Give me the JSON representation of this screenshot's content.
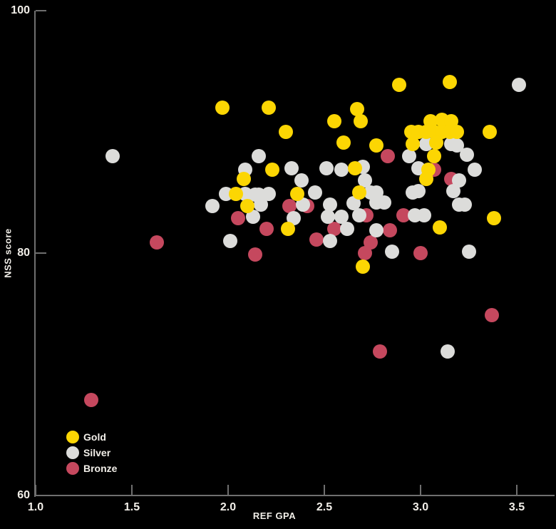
{
  "colors": {
    "background": "#000000",
    "axis": "#6f6f6f",
    "text": "#f2efe9",
    "gold": "#fcd603",
    "silver": "#dcdcda",
    "bronze": "#c5485e"
  },
  "chart_data": {
    "type": "scatter",
    "title": "",
    "xlabel": "REF GPA",
    "ylabel": "NSS score",
    "xlim": [
      1.0,
      3.5
    ],
    "ylim": [
      60,
      100
    ],
    "grid": false,
    "legend_position": "bottom-left",
    "x_ticks": [
      1.0,
      1.5,
      2.0,
      2.5,
      3.0,
      3.5
    ],
    "x_tick_labels": [
      "1.0",
      "1.5",
      "2.0",
      "2.5",
      "3.0",
      "3.5"
    ],
    "y_ticks": [
      100,
      80,
      60
    ],
    "y_tick_labels": [
      "100",
      "80",
      "60"
    ],
    "series": [
      {
        "name": "Gold",
        "color": "#fcd603",
        "points": [
          [
            1.97,
            92.0
          ],
          [
            2.21,
            92.0
          ],
          [
            2.3,
            90.0
          ],
          [
            2.55,
            90.9
          ],
          [
            2.6,
            89.1
          ],
          [
            2.67,
            91.9
          ],
          [
            2.69,
            90.9
          ],
          [
            2.89,
            93.9
          ],
          [
            3.15,
            94.1
          ],
          [
            3.05,
            90.9
          ],
          [
            3.11,
            91.0
          ],
          [
            3.16,
            90.9
          ],
          [
            2.95,
            90.0
          ],
          [
            2.99,
            90.0
          ],
          [
            3.03,
            90.0
          ],
          [
            3.07,
            90.0
          ],
          [
            3.11,
            90.0
          ],
          [
            3.15,
            90.0
          ],
          [
            3.19,
            90.0
          ],
          [
            3.36,
            90.0
          ],
          [
            2.77,
            88.9
          ],
          [
            2.96,
            89.0
          ],
          [
            3.08,
            89.1
          ],
          [
            3.07,
            88.0
          ],
          [
            2.23,
            86.9
          ],
          [
            2.66,
            87.0
          ],
          [
            3.04,
            86.9
          ],
          [
            2.08,
            86.1
          ],
          [
            3.03,
            86.1
          ],
          [
            2.04,
            84.9
          ],
          [
            2.36,
            84.9
          ],
          [
            2.68,
            85.0
          ],
          [
            2.1,
            83.9
          ],
          [
            2.31,
            82.0
          ],
          [
            3.1,
            82.1
          ],
          [
            3.38,
            82.9
          ],
          [
            2.7,
            78.9
          ]
        ]
      },
      {
        "name": "Silver",
        "color": "#dcdcda",
        "points": [
          [
            1.4,
            88.0
          ],
          [
            2.16,
            88.0
          ],
          [
            2.94,
            88.0
          ],
          [
            3.24,
            88.1
          ],
          [
            2.09,
            86.9
          ],
          [
            2.33,
            87.0
          ],
          [
            2.51,
            87.0
          ],
          [
            2.59,
            86.9
          ],
          [
            2.7,
            87.1
          ],
          [
            2.99,
            87.0
          ],
          [
            3.28,
            86.9
          ],
          [
            3.03,
            89.0
          ],
          [
            3.16,
            89.0
          ],
          [
            3.19,
            88.9
          ],
          [
            3.51,
            93.9
          ],
          [
            2.38,
            86.0
          ],
          [
            2.71,
            86.0
          ],
          [
            3.2,
            86.0
          ],
          [
            1.99,
            84.9
          ],
          [
            2.09,
            84.9
          ],
          [
            2.14,
            84.8
          ],
          [
            2.16,
            84.8
          ],
          [
            2.21,
            84.9
          ],
          [
            2.45,
            85.0
          ],
          [
            2.74,
            85.0
          ],
          [
            2.77,
            85.0
          ],
          [
            2.96,
            85.0
          ],
          [
            2.99,
            85.1
          ],
          [
            3.17,
            85.1
          ],
          [
            1.92,
            83.9
          ],
          [
            2.17,
            84.0
          ],
          [
            2.39,
            84.0
          ],
          [
            2.53,
            84.0
          ],
          [
            2.65,
            84.1
          ],
          [
            2.77,
            84.2
          ],
          [
            2.81,
            84.2
          ],
          [
            3.2,
            84.0
          ],
          [
            3.23,
            84.0
          ],
          [
            2.13,
            83.0
          ],
          [
            2.34,
            82.9
          ],
          [
            2.52,
            83.0
          ],
          [
            2.59,
            83.0
          ],
          [
            2.68,
            83.1
          ],
          [
            2.97,
            83.1
          ],
          [
            3.02,
            83.1
          ],
          [
            2.62,
            82.0
          ],
          [
            2.77,
            81.9
          ],
          [
            2.01,
            81.0
          ],
          [
            2.53,
            81.0
          ],
          [
            2.85,
            80.1
          ],
          [
            3.25,
            80.1
          ],
          [
            3.14,
            71.9
          ]
        ]
      },
      {
        "name": "Bronze",
        "color": "#c5485e",
        "points": [
          [
            2.83,
            88.0
          ],
          [
            3.07,
            86.9
          ],
          [
            3.16,
            86.1
          ],
          [
            2.32,
            83.9
          ],
          [
            2.41,
            83.9
          ],
          [
            2.05,
            82.9
          ],
          [
            2.72,
            83.1
          ],
          [
            2.91,
            83.1
          ],
          [
            2.2,
            82.0
          ],
          [
            2.55,
            82.0
          ],
          [
            2.84,
            81.9
          ],
          [
            2.46,
            81.1
          ],
          [
            2.74,
            80.9
          ],
          [
            1.63,
            80.9
          ],
          [
            2.14,
            79.9
          ],
          [
            2.71,
            80.0
          ],
          [
            3.0,
            80.0
          ],
          [
            3.37,
            74.9
          ],
          [
            2.79,
            71.9
          ],
          [
            1.29,
            67.9
          ]
        ]
      }
    ]
  }
}
